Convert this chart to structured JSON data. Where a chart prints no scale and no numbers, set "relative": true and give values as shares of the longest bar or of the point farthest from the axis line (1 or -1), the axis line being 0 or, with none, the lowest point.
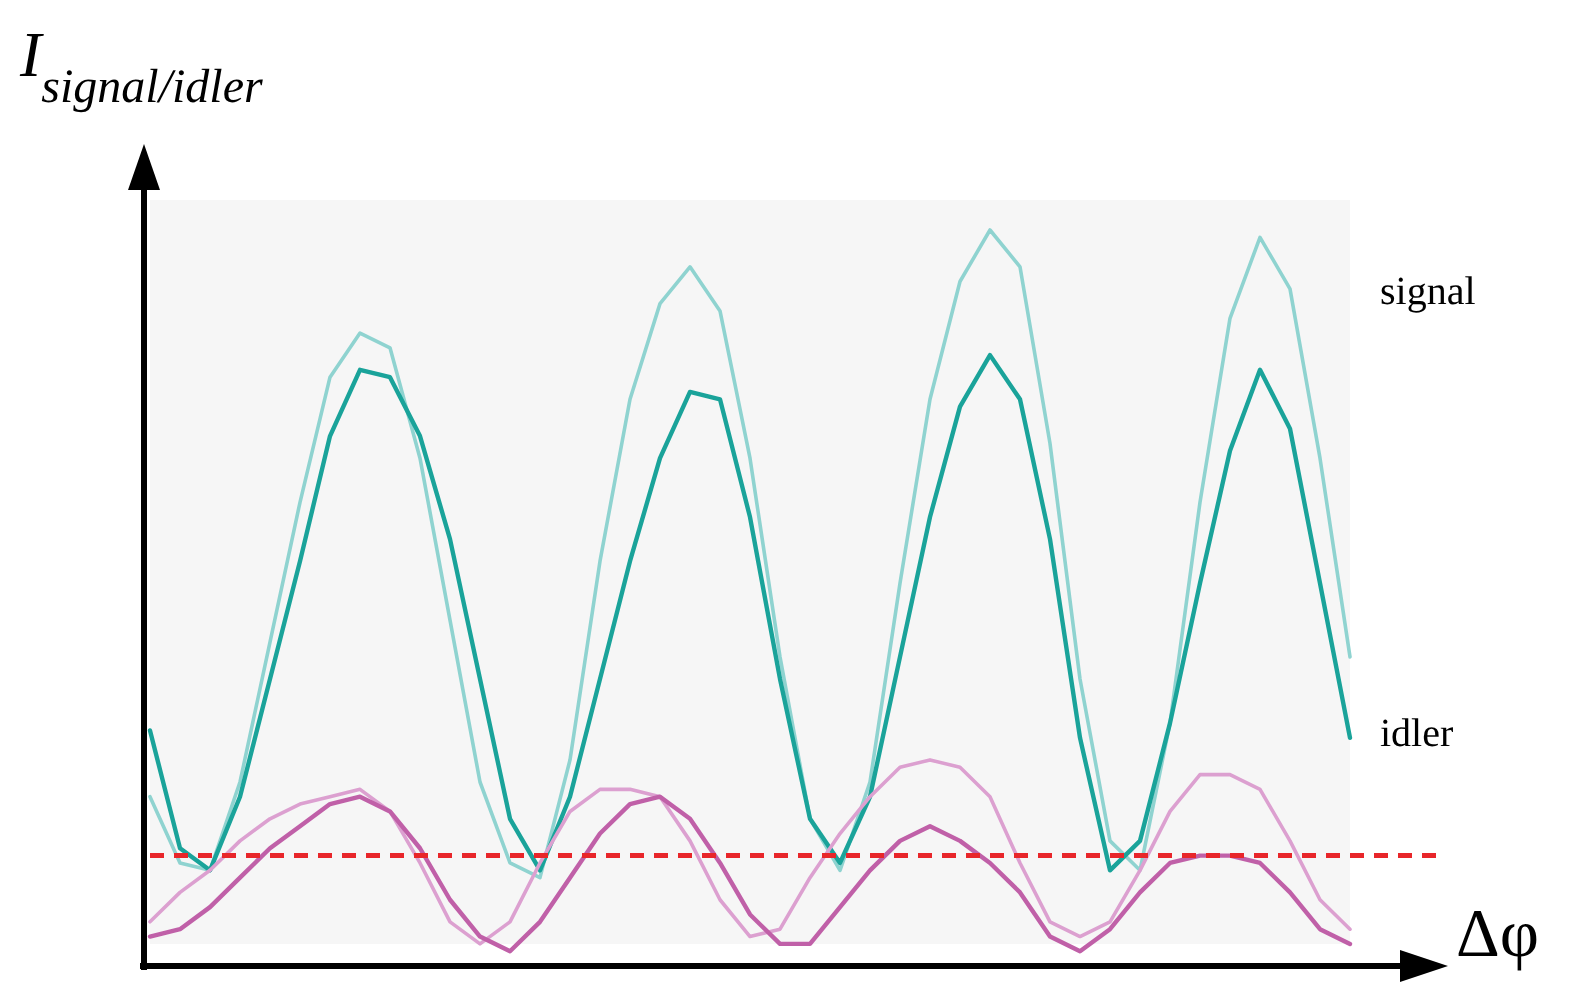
{
  "chart_data": {
    "type": "line",
    "relative": true,
    "ylabel": "I$_{signal/idler}$",
    "xlabel": "Δφ",
    "categories": [
      null,
      null,
      null,
      null,
      null,
      null,
      null,
      null,
      null,
      null,
      null,
      null,
      null,
      null,
      null,
      null,
      null,
      null,
      null,
      null,
      null,
      null,
      null,
      null,
      null,
      null,
      null,
      null,
      null,
      null,
      null,
      null,
      null,
      null,
      null,
      null,
      null,
      null,
      null,
      null,
      null
    ],
    "series": [
      {
        "color": "#8fd3d0",
        "values": [
          0.23,
          0.14,
          0.13,
          0.25,
          0.44,
          0.63,
          0.8,
          0.86,
          0.84,
          0.69,
          0.47,
          0.25,
          0.14,
          0.12,
          0.28,
          0.55,
          0.77,
          0.9,
          0.95,
          0.89,
          0.69,
          0.42,
          0.2,
          0.13,
          0.25,
          0.52,
          0.77,
          0.93,
          1.0,
          0.95,
          0.71,
          0.39,
          0.17,
          0.13,
          0.33,
          0.63,
          0.88,
          0.99,
          0.92,
          0.69,
          0.42
        ]
      },
      {
        "name": "signal",
        "color": "#1aa39a",
        "values": [
          0.32,
          0.16,
          0.13,
          0.23,
          0.39,
          0.55,
          0.72,
          0.81,
          0.8,
          0.72,
          0.58,
          0.39,
          0.2,
          0.13,
          0.23,
          0.39,
          0.55,
          0.69,
          0.78,
          0.77,
          0.61,
          0.39,
          0.2,
          0.14,
          0.23,
          0.42,
          0.61,
          0.76,
          0.83,
          0.77,
          0.58,
          0.31,
          0.13,
          0.17,
          0.33,
          0.52,
          0.7,
          0.81,
          0.73,
          0.52,
          0.31
        ]
      },
      {
        "color": "#dca0d0",
        "values": [
          0.06,
          0.1,
          0.13,
          0.17,
          0.2,
          0.22,
          0.23,
          0.24,
          0.21,
          0.14,
          0.06,
          0.03,
          0.06,
          0.14,
          0.21,
          0.24,
          0.24,
          0.23,
          0.17,
          0.09,
          0.04,
          0.05,
          0.12,
          0.18,
          0.23,
          0.27,
          0.28,
          0.27,
          0.23,
          0.14,
          0.06,
          0.04,
          0.06,
          0.13,
          0.21,
          0.26,
          0.26,
          0.24,
          0.17,
          0.09,
          0.05
        ]
      },
      {
        "name": "idler",
        "color": "#c060a8",
        "values": [
          0.04,
          0.05,
          0.08,
          0.12,
          0.16,
          0.19,
          0.22,
          0.23,
          0.21,
          0.16,
          0.09,
          0.04,
          0.02,
          0.06,
          0.12,
          0.18,
          0.22,
          0.23,
          0.2,
          0.14,
          0.07,
          0.03,
          0.03,
          0.08,
          0.13,
          0.17,
          0.19,
          0.17,
          0.14,
          0.1,
          0.04,
          0.02,
          0.05,
          0.1,
          0.14,
          0.15,
          0.15,
          0.14,
          0.1,
          0.05,
          0.03
        ]
      }
    ],
    "ref_lines": [
      {
        "axis": "y",
        "value": 0.15,
        "color": "#e8262a",
        "line_style": "dashed"
      }
    ]
  }
}
